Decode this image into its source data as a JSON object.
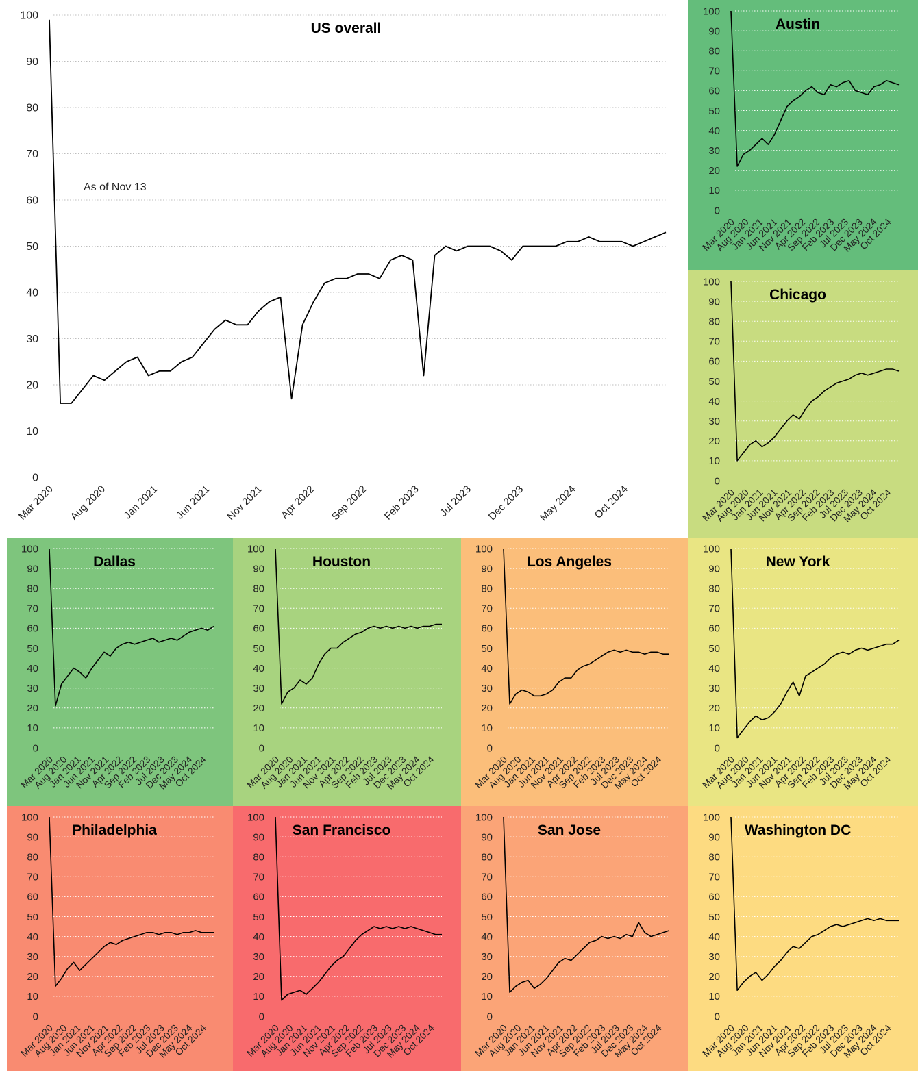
{
  "x_start": "Mar 2020",
  "x_end": "Nov 2024",
  "y_ticks": [
    "0",
    "10",
    "20",
    "30",
    "40",
    "50",
    "60",
    "70",
    "80",
    "90",
    "100"
  ],
  "x_ticks": [
    "Mar 2020",
    "Aug 2020",
    "Jan 2021",
    "Jun 2021",
    "Nov 2021",
    "Apr 2022",
    "Sep 2022",
    "Feb 2023",
    "Jul 2023",
    "Dec 2023",
    "May 2024",
    "Oct 2024"
  ],
  "chart_data": [
    {
      "type": "line",
      "title": "US overall",
      "annotation": "As of Nov 13",
      "background": "#ffffff",
      "ylim": [
        0,
        100
      ],
      "series": [
        {
          "x": [
            "2020-03",
            "2020-04",
            "2020-05",
            "2020-06",
            "2020-07",
            "2020-08",
            "2020-09",
            "2020-10",
            "2020-11",
            "2020-12",
            "2021-01",
            "2021-02",
            "2021-03",
            "2021-04",
            "2021-05",
            "2021-06",
            "2021-07",
            "2021-08",
            "2021-09",
            "2021-10",
            "2021-11",
            "2021-12",
            "2022-01",
            "2022-02",
            "2022-03",
            "2022-04",
            "2022-05",
            "2022-06",
            "2022-07",
            "2022-08",
            "2022-09",
            "2022-10",
            "2022-11",
            "2022-12",
            "2023-01",
            "2023-02",
            "2023-03",
            "2023-04",
            "2023-05",
            "2023-06",
            "2023-07",
            "2023-08",
            "2023-09",
            "2023-10",
            "2023-11",
            "2023-12",
            "2024-01",
            "2024-02",
            "2024-03",
            "2024-04",
            "2024-05",
            "2024-06",
            "2024-07",
            "2024-08",
            "2024-09",
            "2024-10",
            "2024-11"
          ],
          "values": [
            99,
            16,
            16,
            19,
            22,
            21,
            23,
            25,
            26,
            22,
            23,
            23,
            25,
            26,
            29,
            32,
            34,
            33,
            33,
            36,
            38,
            39,
            17,
            33,
            38,
            42,
            43,
            43,
            44,
            44,
            43,
            47,
            48,
            47,
            22,
            48,
            50,
            49,
            50,
            50,
            50,
            49,
            47,
            50,
            50,
            50,
            50,
            51,
            51,
            52,
            51,
            51,
            51,
            50,
            51,
            52,
            53
          ]
        }
      ]
    },
    {
      "type": "line",
      "title": "Austin",
      "background": "#64bd7b",
      "ylim": [
        0,
        100
      ],
      "series": [
        {
          "values": [
            100,
            22,
            28,
            30,
            33,
            36,
            33,
            38,
            45,
            52,
            55,
            57,
            60,
            62,
            59,
            58,
            63,
            62,
            64,
            65,
            60,
            59,
            58,
            62,
            63,
            65,
            64,
            63
          ]
        }
      ]
    },
    {
      "type": "line",
      "title": "Chicago",
      "background": "#c8dc80",
      "ylim": [
        0,
        100
      ],
      "series": [
        {
          "values": [
            100,
            10,
            14,
            18,
            20,
            17,
            19,
            22,
            26,
            30,
            33,
            31,
            36,
            40,
            42,
            45,
            47,
            49,
            50,
            51,
            53,
            54,
            53,
            54,
            55,
            56,
            56,
            55
          ]
        }
      ]
    },
    {
      "type": "line",
      "title": "Dallas",
      "background": "#7ec57d",
      "ylim": [
        0,
        100
      ],
      "series": [
        {
          "values": [
            100,
            21,
            32,
            36,
            40,
            38,
            35,
            40,
            44,
            48,
            46,
            50,
            52,
            53,
            52,
            53,
            54,
            55,
            53,
            54,
            55,
            54,
            56,
            58,
            59,
            60,
            59,
            61
          ]
        }
      ]
    },
    {
      "type": "line",
      "title": "Houston",
      "background": "#a8d37f",
      "ylim": [
        0,
        100
      ],
      "series": [
        {
          "values": [
            100,
            22,
            28,
            30,
            34,
            32,
            35,
            42,
            47,
            50,
            50,
            53,
            55,
            57,
            58,
            60,
            61,
            60,
            61,
            60,
            61,
            60,
            61,
            60,
            61,
            61,
            62,
            62
          ]
        }
      ]
    },
    {
      "type": "line",
      "title": "Los Angeles",
      "background": "#fbbe7a",
      "ylim": [
        0,
        100
      ],
      "series": [
        {
          "values": [
            100,
            22,
            27,
            29,
            28,
            26,
            26,
            27,
            29,
            33,
            35,
            35,
            39,
            41,
            42,
            44,
            46,
            48,
            49,
            48,
            49,
            48,
            48,
            47,
            48,
            48,
            47,
            47
          ]
        }
      ]
    },
    {
      "type": "line",
      "title": "New York",
      "background": "#e9e583",
      "ylim": [
        0,
        100
      ],
      "series": [
        {
          "values": [
            100,
            5,
            9,
            13,
            16,
            14,
            15,
            18,
            22,
            28,
            33,
            26,
            36,
            38,
            40,
            42,
            45,
            47,
            48,
            47,
            49,
            50,
            49,
            50,
            51,
            52,
            52,
            54
          ]
        }
      ]
    },
    {
      "type": "line",
      "title": "Philadelphia",
      "background": "#f98b71",
      "ylim": [
        0,
        100
      ],
      "series": [
        {
          "values": [
            100,
            15,
            19,
            24,
            27,
            23,
            26,
            29,
            32,
            35,
            37,
            36,
            38,
            39,
            40,
            41,
            42,
            42,
            41,
            42,
            42,
            41,
            42,
            42,
            43,
            42,
            42,
            42
          ]
        }
      ]
    },
    {
      "type": "line",
      "title": "San Francisco",
      "background": "#f86b6d",
      "ylim": [
        0,
        100
      ],
      "series": [
        {
          "values": [
            100,
            8,
            11,
            12,
            13,
            11,
            14,
            17,
            21,
            25,
            28,
            30,
            34,
            38,
            41,
            43,
            45,
            44,
            45,
            44,
            45,
            44,
            45,
            44,
            43,
            42,
            41,
            41
          ]
        }
      ]
    },
    {
      "type": "line",
      "title": "San Jose",
      "background": "#fba477",
      "ylim": [
        0,
        100
      ],
      "series": [
        {
          "values": [
            100,
            12,
            15,
            17,
            18,
            14,
            16,
            19,
            23,
            27,
            29,
            28,
            31,
            34,
            37,
            38,
            40,
            39,
            40,
            39,
            41,
            40,
            47,
            42,
            40,
            41,
            42,
            43
          ]
        }
      ]
    },
    {
      "type": "line",
      "title": "Washington DC",
      "background": "#fddb81",
      "ylim": [
        0,
        100
      ],
      "series": [
        {
          "values": [
            100,
            13,
            17,
            20,
            22,
            18,
            21,
            25,
            28,
            32,
            35,
            34,
            37,
            40,
            41,
            43,
            45,
            46,
            45,
            46,
            47,
            48,
            49,
            48,
            49,
            48,
            48,
            48
          ]
        }
      ]
    }
  ]
}
